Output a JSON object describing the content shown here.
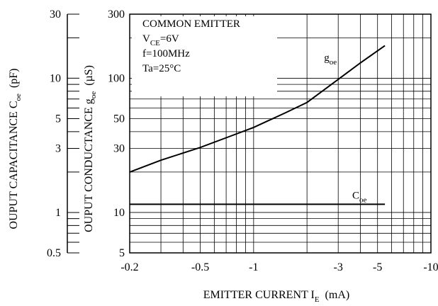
{
  "chart_data": {
    "type": "line",
    "xlabel": "EMITTER CURRENT I",
    "xlabel_sub": "E",
    "xlabel_unit": "(mA)",
    "ylabel_left_prefix": "OUPUT CAPACITANCE C",
    "ylabel_left_sub": "oe",
    "ylabel_left_unit": "(pF)",
    "ylabel_right_prefix": "OUPUT CONDUCTANCE g",
    "ylabel_right_sub": "oe",
    "ylabel_right_unit": "(µS)",
    "x_scale": "log",
    "y_scale": "log",
    "xlim": [
      -0.2,
      -10
    ],
    "ylim_conductance": [
      5,
      300
    ],
    "ylim_capacitance": [
      0.5,
      30
    ],
    "grid": true,
    "x_ticks": [
      {
        "value": -0.2,
        "label": "-0.2"
      },
      {
        "value": -0.5,
        "label": "-0.5"
      },
      {
        "value": -1,
        "label": "-1"
      },
      {
        "value": -3,
        "label": "-3"
      },
      {
        "value": -5,
        "label": "-5"
      },
      {
        "value": -10,
        "label": "-10"
      }
    ],
    "y_ticks_conductance": [
      {
        "value": 5,
        "label": "5"
      },
      {
        "value": 10,
        "label": "10"
      },
      {
        "value": 30,
        "label": "30"
      },
      {
        "value": 50,
        "label": "50"
      },
      {
        "value": 100,
        "label": "100"
      },
      {
        "value": 300,
        "label": "300"
      }
    ],
    "y_ticks_capacitance": [
      {
        "value": 0.5,
        "label": "0.5"
      },
      {
        "value": 1,
        "label": "1"
      },
      {
        "value": 3,
        "label": "3"
      },
      {
        "value": 5,
        "label": "5"
      },
      {
        "value": 10,
        "label": "10"
      },
      {
        "value": 30,
        "label": "30"
      }
    ],
    "conditions": [
      {
        "text": "COMMON EMITTER"
      },
      {
        "text": "V",
        "sub": "CE",
        "after": "=6V"
      },
      {
        "text": "f=100MHz"
      },
      {
        "text": "Ta=25°C"
      }
    ],
    "series": [
      {
        "name": "g",
        "name_sub": "oe",
        "axis": "conductance",
        "x": [
          -0.2,
          -0.3,
          -0.5,
          -0.7,
          -1,
          -1.5,
          -2,
          -3,
          -4,
          -5.5
        ],
        "y": [
          20,
          24.5,
          30.5,
          36,
          43,
          55,
          66,
          98,
          130,
          175
        ]
      },
      {
        "name": "C",
        "name_sub": "oe",
        "axis": "capacitance",
        "x": [
          -0.2,
          -0.5,
          -1,
          -3,
          -5.5
        ],
        "y": [
          1.15,
          1.15,
          1.15,
          1.15,
          1.15
        ]
      }
    ]
  }
}
